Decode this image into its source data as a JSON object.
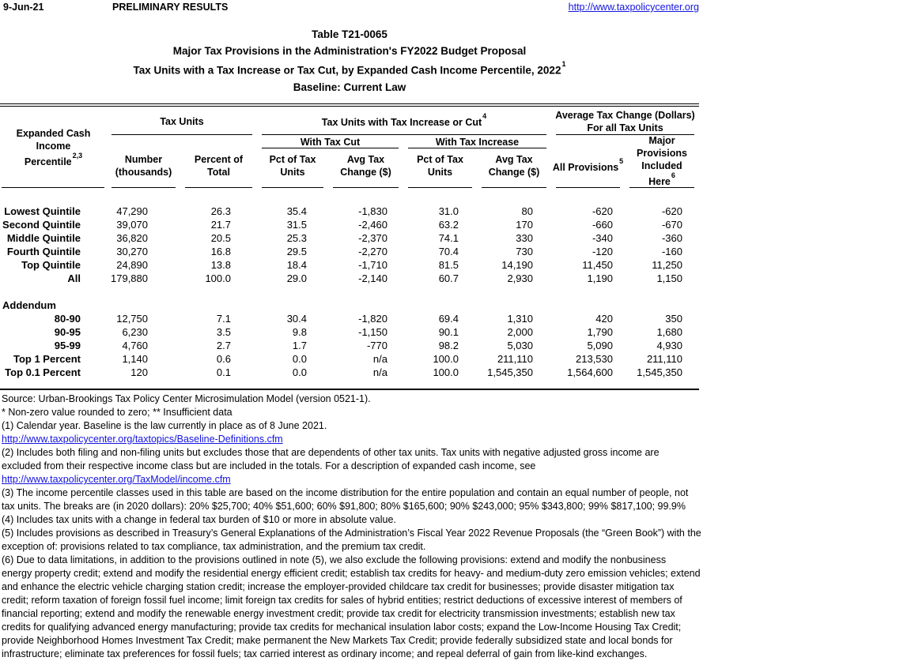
{
  "page_header": {
    "date": "9-Jun-21",
    "status": "PRELIMINARY RESULTS",
    "url": "http://www.taxpolicycenter.org"
  },
  "title": {
    "table_number": "Table T21-0065",
    "line2": "Major Tax Provisions in the Administration's FY2022 Budget Proposal",
    "line3": "Tax Units with a Tax Increase or Tax Cut, by Expanded Cash Income Percentile, 2022",
    "line3_sup": "1",
    "line4": "Baseline: Current Law"
  },
  "table": {
    "stub_header": {
      "line1": "Expanded Cash Income",
      "line2": "Percentile",
      "sup": "2,3"
    },
    "groups": {
      "tax_units": "Tax Units",
      "increase_or_cut": "Tax Units with Tax Increase or Cut",
      "increase_or_cut_sup": "4",
      "avg_change_line1": "Average Tax Change (Dollars)",
      "avg_change_line2": "For all Tax Units",
      "with_cut": "With Tax Cut",
      "with_increase": "With Tax Increase"
    },
    "columns": {
      "number": {
        "line1": "Number",
        "line2": "(thousands)"
      },
      "pct_total": {
        "line1": "Percent of",
        "line2": "Total"
      },
      "cut_pct": {
        "line1": "Pct of Tax",
        "line2": "Units"
      },
      "cut_avg": {
        "line1": "Avg Tax",
        "line2": "Change ($)"
      },
      "inc_pct": {
        "line1": "Pct of Tax",
        "line2": "Units"
      },
      "inc_avg": {
        "line1": "Avg Tax",
        "line2": "Change ($)"
      },
      "all_provisions": {
        "label": "All Provisions",
        "sup": "5"
      },
      "major_provisions": {
        "line1": "Major",
        "line2": "Provisions",
        "line3": "Included",
        "line4": "Here",
        "sup": "6"
      }
    },
    "rows": [
      {
        "label": "Lowest Quintile",
        "values": [
          "47,290",
          "26.3",
          "35.4",
          "-1,830",
          "31.0",
          "80",
          "-620",
          "-620"
        ]
      },
      {
        "label": "Second Quintile",
        "values": [
          "39,070",
          "21.7",
          "31.5",
          "-2,460",
          "63.2",
          "170",
          "-660",
          "-670"
        ]
      },
      {
        "label": "Middle Quintile",
        "values": [
          "36,820",
          "20.5",
          "25.3",
          "-2,370",
          "74.1",
          "330",
          "-340",
          "-360"
        ]
      },
      {
        "label": "Fourth Quintile",
        "values": [
          "30,270",
          "16.8",
          "29.5",
          "-2,270",
          "70.4",
          "730",
          "-120",
          "-160"
        ]
      },
      {
        "label": "Top Quintile",
        "values": [
          "24,890",
          "13.8",
          "18.4",
          "-1,710",
          "81.5",
          "14,190",
          "11,450",
          "11,250"
        ]
      },
      {
        "label": "All",
        "values": [
          "179,880",
          "100.0",
          "29.0",
          "-2,140",
          "60.7",
          "2,930",
          "1,190",
          "1,150"
        ]
      }
    ],
    "addendum_label": "Addendum",
    "addendum_rows": [
      {
        "label": "80-90",
        "values": [
          "12,750",
          "7.1",
          "30.4",
          "-1,820",
          "69.4",
          "1,310",
          "420",
          "350"
        ]
      },
      {
        "label": "90-95",
        "values": [
          "6,230",
          "3.5",
          "9.8",
          "-1,150",
          "90.1",
          "2,000",
          "1,790",
          "1,680"
        ]
      },
      {
        "label": "95-99",
        "values": [
          "4,760",
          "2.7",
          "1.7",
          "-770",
          "98.2",
          "5,030",
          "5,090",
          "4,930"
        ]
      },
      {
        "label": "Top 1 Percent",
        "values": [
          "1,140",
          "0.6",
          "0.0",
          "n/a",
          "100.0",
          "211,110",
          "213,530",
          "211,110"
        ]
      },
      {
        "label": "Top 0.1 Percent",
        "values": [
          "120",
          "0.1",
          "0.0",
          "n/a",
          "100.0",
          "1,545,350",
          "1,564,600",
          "1,545,350"
        ]
      }
    ]
  },
  "footnotes": {
    "lines": [
      {
        "text": "Source: Urban-Brookings Tax Policy Center Microsimulation Model (version 0521-1).",
        "link": false
      },
      {
        "text": "* Non-zero value rounded to zero; ** Insufficient data",
        "link": false
      },
      {
        "text": "(1) Calendar year. Baseline is the law currently in place as of 8 June 2021.",
        "link": false
      },
      {
        "text": "http://www.taxpolicycenter.org/taxtopics/Baseline-Definitions.cfm",
        "link": true
      },
      {
        "text": "(2) Includes both filing and non-filing units but excludes those that are dependents of other tax units. Tax units with negative adjusted gross income are",
        "link": false
      },
      {
        "text": "excluded from their respective income class but are included in the totals. For a description of expanded cash income, see",
        "link": false
      },
      {
        "text": "http://www.taxpolicycenter.org/TaxModel/income.cfm",
        "link": true
      },
      {
        "text": "(3) The income percentile classes used in this table are based on the income distribution for the entire population and contain an equal number of people, not",
        "link": false
      },
      {
        "text": "tax units. The breaks are (in 2020 dollars): 20% $25,700; 40% $51,600; 60% $91,800; 80% $165,600; 90% $243,000; 95% $343,800; 99% $817,100; 99.9%",
        "link": false
      },
      {
        "text": "(4) Includes tax units with a change in federal tax burden of $10 or more in absolute value.",
        "link": false
      },
      {
        "text": "(5) Includes provisions as described in Treasury’s General Explanations of the Administration’s Fiscal Year 2022 Revenue Proposals (the “Green Book”) with the",
        "link": false
      },
      {
        "text": "exception of: provisions related to tax compliance, tax administration, and the premium tax credit.",
        "link": false
      },
      {
        "text": "(6) Due to data limitations, in addition to the provisions outlined in note (5), we also exclude the following provisions: extend and modify the nonbusiness",
        "link": false
      },
      {
        "text": "energy property credit; extend and modify the residential energy efficient credit; establish tax credits for heavy- and medium-duty zero emission vehicles; extend",
        "link": false
      },
      {
        "text": "and enhance the electric vehicle charging station credit; increase the employer-provided childcare tax credit for businesses; provide disaster mitigation tax",
        "link": false
      },
      {
        "text": "credit; reform taxation of foreign fossil fuel income; limit foreign tax credits for sales of hybrid entities; restrict deductions of excessive interest of members of",
        "link": false
      },
      {
        "text": "financial reporting; extend and modify the renewable energy investment credit; provide tax credit for electricity transmission investments; establish new tax",
        "link": false
      },
      {
        "text": "credits for qualifying advanced energy manufacturing; provide tax credits for mechanical insulation labor costs; expand the Low-Income Housing Tax Credit;",
        "link": false
      },
      {
        "text": "provide Neighborhood Homes Investment Tax Credit; make permanent the New Markets Tax Credit; provide federally subsidized state and local bonds for",
        "link": false
      },
      {
        "text": "infrastructure; eliminate tax preferences for fossil fuels; tax carried interest as ordinary income; and repeal deferral of gain from like-kind exchanges.",
        "link": false
      }
    ]
  }
}
